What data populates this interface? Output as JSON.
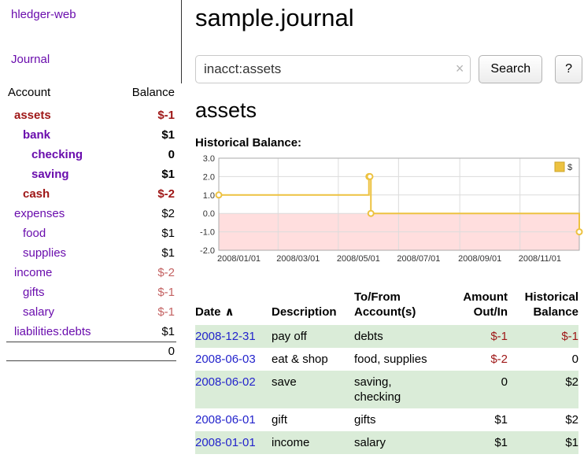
{
  "app": {
    "brand": "hledger-web",
    "nav_journal": "Journal"
  },
  "colors": {
    "link_purple": "#6a0dad",
    "negative_red": "#9e1616",
    "negative_light": "#c46262",
    "date_blue": "#2424cc",
    "row_green": "#daecd8",
    "chart_line": "#edc240",
    "chart_negative_bg": "#ffdede"
  },
  "sidebar": {
    "headers": {
      "account": "Account",
      "balance": "Balance"
    },
    "accounts": [
      {
        "name": "assets",
        "balance": "$-1",
        "indent": 0,
        "bold": true,
        "name_style": "neg",
        "bal_style": "neg"
      },
      {
        "name": "bank",
        "balance": "$1",
        "indent": 1,
        "bold": true,
        "name_style": "link",
        "bal_style": "pos"
      },
      {
        "name": "checking",
        "balance": "0",
        "indent": 2,
        "bold": true,
        "name_style": "link",
        "bal_style": "pos"
      },
      {
        "name": "saving",
        "balance": "$1",
        "indent": 2,
        "bold": true,
        "name_style": "link",
        "bal_style": "pos"
      },
      {
        "name": "cash",
        "balance": "$-2",
        "indent": 1,
        "bold": true,
        "name_style": "neg",
        "bal_style": "neg"
      },
      {
        "name": "expenses",
        "balance": "$2",
        "indent": 0,
        "bold": false,
        "name_style": "link",
        "bal_style": "pos"
      },
      {
        "name": "food",
        "balance": "$1",
        "indent": 1,
        "bold": false,
        "name_style": "link",
        "bal_style": "pos"
      },
      {
        "name": "supplies",
        "balance": "$1",
        "indent": 1,
        "bold": false,
        "name_style": "link",
        "bal_style": "pos"
      },
      {
        "name": "income",
        "balance": "$-2",
        "indent": 0,
        "bold": false,
        "name_style": "link",
        "bal_style": "neglight"
      },
      {
        "name": "gifts",
        "balance": "$-1",
        "indent": 1,
        "bold": false,
        "name_style": "link",
        "bal_style": "neglight"
      },
      {
        "name": "salary",
        "balance": "$-1",
        "indent": 1,
        "bold": false,
        "name_style": "link",
        "bal_style": "neglight"
      },
      {
        "name": "liabilities:debts",
        "balance": "$1",
        "indent": 0,
        "bold": false,
        "name_style": "link",
        "bal_style": "pos"
      }
    ],
    "total": "0"
  },
  "main": {
    "title": "sample.journal",
    "search": {
      "value": "inacct:assets",
      "clear_icon": "×",
      "button": "Search",
      "help_button": "?"
    },
    "account_title": "assets",
    "chart_title": "Historical Balance:"
  },
  "chart_data": {
    "type": "line",
    "title": "Historical Balance:",
    "step": true,
    "grid": true,
    "legend_position": "top-right",
    "legend": {
      "label": "$"
    },
    "xlim": [
      0,
      365
    ],
    "ylim": [
      -2,
      3
    ],
    "y_ticks": [
      3.0,
      2.0,
      1.0,
      0.0,
      -1.0,
      -2.0
    ],
    "x_ticks": [
      {
        "label": "2008/01/01",
        "x": 0
      },
      {
        "label": "2008/03/01",
        "x": 60
      },
      {
        "label": "2008/05/01",
        "x": 121
      },
      {
        "label": "2008/07/01",
        "x": 182
      },
      {
        "label": "2008/09/01",
        "x": 244
      },
      {
        "label": "2008/11/01",
        "x": 305
      }
    ],
    "series": [
      {
        "name": "$",
        "points": [
          {
            "date": "2008/01/01",
            "x": 0,
            "y": 1
          },
          {
            "date": "2008/06/01",
            "x": 152,
            "y": 2
          },
          {
            "date": "2008/06/02",
            "x": 153,
            "y": 2
          },
          {
            "date": "2008/06/03",
            "x": 154,
            "y": 0
          },
          {
            "date": "2008/12/31",
            "x": 365,
            "y": -1
          }
        ]
      }
    ]
  },
  "register": {
    "headers": {
      "date": "Date",
      "sort_indicator": "∧",
      "description": "Description",
      "tofrom_line1": "To/From",
      "tofrom_line2": "Account(s)",
      "amount_line1": "Amount",
      "amount_line2": "Out/In",
      "hist_line1": "Historical",
      "hist_line2": "Balance"
    },
    "rows": [
      {
        "date": "2008-12-31",
        "description": "pay off",
        "accounts": "debts",
        "amount": "$-1",
        "amount_neg": true,
        "balance": "$-1",
        "balance_neg": true,
        "shaded": true
      },
      {
        "date": "2008-06-03",
        "description": "eat & shop",
        "accounts": "food, supplies",
        "amount": "$-2",
        "amount_neg": true,
        "balance": "0",
        "balance_neg": false,
        "shaded": false
      },
      {
        "date": "2008-06-02",
        "description": "save",
        "accounts": "saving, checking",
        "amount": "0",
        "amount_neg": false,
        "balance": "$2",
        "balance_neg": false,
        "shaded": true
      },
      {
        "date": "2008-06-01",
        "description": "gift",
        "accounts": "gifts",
        "amount": "$1",
        "amount_neg": false,
        "balance": "$2",
        "balance_neg": false,
        "shaded": false
      },
      {
        "date": "2008-01-01",
        "description": "income",
        "accounts": "salary",
        "amount": "$1",
        "amount_neg": false,
        "balance": "$1",
        "balance_neg": false,
        "shaded": true
      }
    ]
  }
}
